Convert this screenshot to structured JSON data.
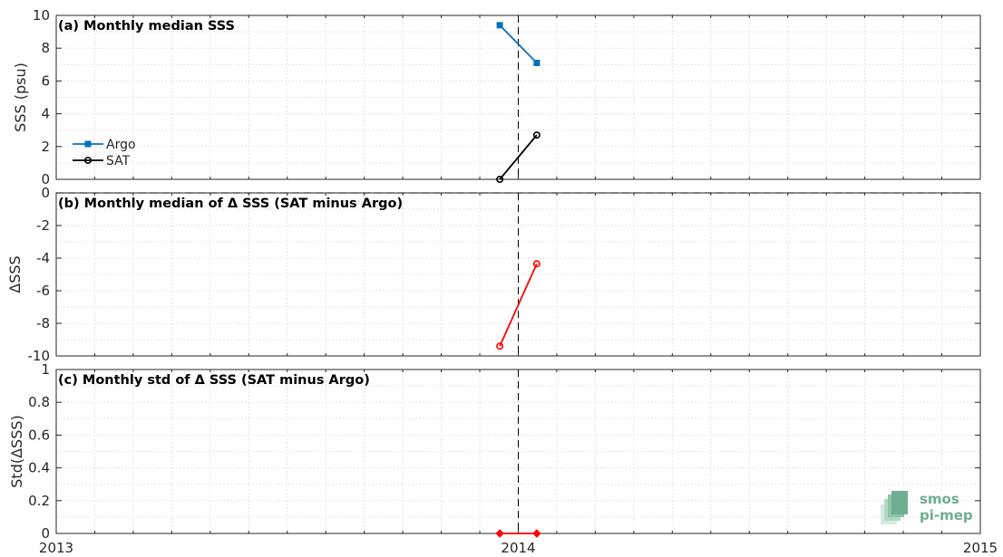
{
  "chart_data": [
    {
      "panel": "a",
      "type": "line",
      "title": "(a) Monthly median SSS",
      "ylabel": "SSS (psu)",
      "ylim": [
        0,
        10
      ],
      "yticks": [
        0,
        2,
        4,
        6,
        8,
        10
      ],
      "xlim": [
        2013,
        2015
      ],
      "grid": true,
      "legend_position": "left",
      "vline_x": 2014.0,
      "series": [
        {
          "name": "Argo",
          "color": "#0072bd",
          "marker": "square",
          "x": [
            2013.96,
            2014.04
          ],
          "y": [
            9.4,
            7.1
          ]
        },
        {
          "name": "SAT",
          "color": "#000000",
          "marker": "circle",
          "x": [
            2013.96,
            2014.04
          ],
          "y": [
            0.0,
            2.7
          ]
        }
      ]
    },
    {
      "panel": "b",
      "type": "line",
      "title": "(b) Monthly median of Δ SSS (SAT minus Argo)",
      "ylabel": "ΔSSS",
      "ylim": [
        -10,
        0
      ],
      "yticks": [
        -10,
        -8,
        -6,
        -4,
        -2,
        0
      ],
      "xlim": [
        2013,
        2015
      ],
      "grid": true,
      "zero_line": true,
      "vline_x": 2014.0,
      "series": [
        {
          "color": "#ff0000",
          "marker": "circle",
          "x": [
            2013.96,
            2014.04
          ],
          "y": [
            -9.4,
            -4.35
          ]
        }
      ]
    },
    {
      "panel": "c",
      "type": "line",
      "title": "(c) Monthly std of Δ SSS (SAT minus Argo)",
      "ylabel": "Std(ΔSSS)",
      "ylim": [
        0,
        1
      ],
      "yticks": [
        0,
        0.2,
        0.4,
        0.6,
        0.8,
        1
      ],
      "xlim": [
        2013,
        2015
      ],
      "xticks": [
        2013,
        2014,
        2015
      ],
      "grid": true,
      "vline_x": 2014.0,
      "series": [
        {
          "color": "#ff0000",
          "marker": "diamond",
          "x": [
            2013.96,
            2014.04
          ],
          "y": [
            0,
            0
          ]
        }
      ]
    }
  ],
  "logo": {
    "line1": "smos",
    "line2": "pi-mep"
  },
  "colors": {
    "axis": "#262626",
    "grid": "#e3e3e3",
    "argo": "#0072bd",
    "sat": "#000000",
    "delta": "#ff0000",
    "logo": "#6fae90"
  }
}
